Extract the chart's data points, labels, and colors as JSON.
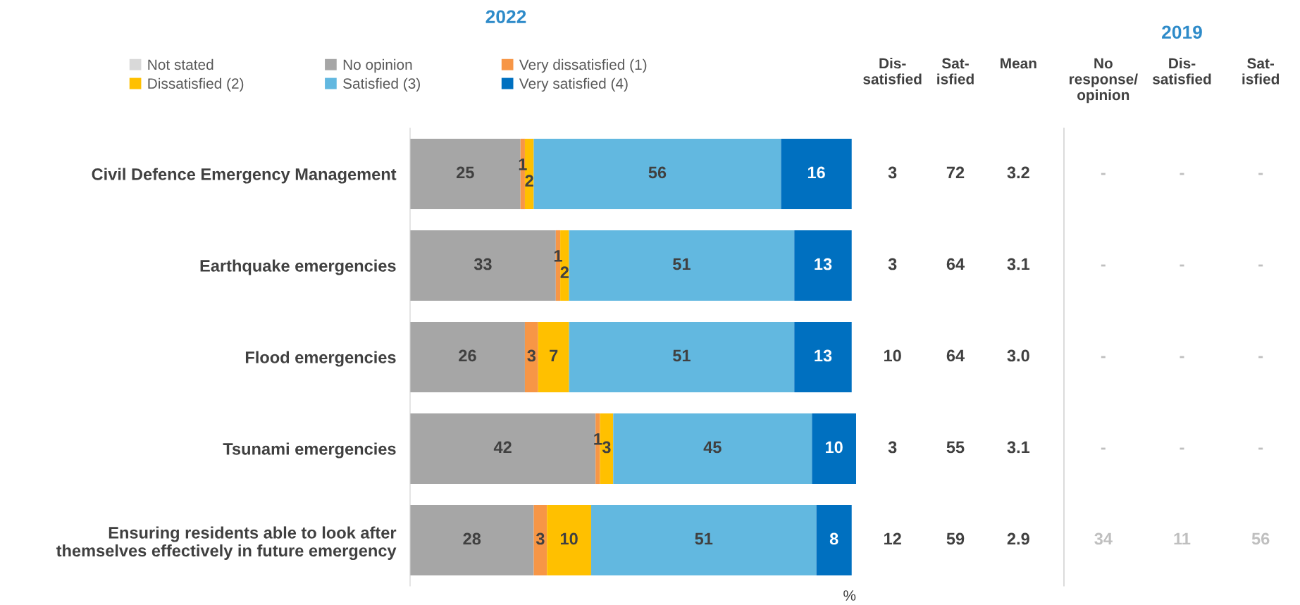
{
  "chart_data": [
    {
      "type": "bar",
      "orientation": "horizontal",
      "stacked": true,
      "title": "2022",
      "xlabel": "%",
      "xlim": [
        0,
        101
      ],
      "tick_labels": "y",
      "legend": "top",
      "grid": false,
      "categories": [
        "Civil Defence Emergency Management",
        "Earthquake emergencies",
        "Flood emergencies",
        "Tsunami emergencies",
        "Ensuring residents able to look after\nthemselves effectively in future emergency"
      ],
      "series": [
        {
          "name": "Not stated",
          "color": "#d9d9d9",
          "values": [
            0,
            0,
            0,
            0,
            0
          ],
          "value_labels": [
            null,
            null,
            null,
            null,
            null
          ]
        },
        {
          "name": "No opinion",
          "color": "#a6a6a6",
          "values": [
            25,
            33,
            26,
            42,
            28
          ],
          "value_labels": [
            "25",
            "33",
            "26",
            "42",
            "28"
          ]
        },
        {
          "name": "Very dissatisfied (1)",
          "color": "#f79646",
          "values": [
            1,
            1,
            3,
            1,
            3
          ],
          "value_labels": [
            "1",
            "1",
            "3",
            "1",
            "3"
          ]
        },
        {
          "name": "Dissatisfied (2)",
          "color": "#ffc000",
          "values": [
            2,
            2,
            7,
            3,
            10
          ],
          "value_labels": [
            "2",
            "2",
            "7",
            "3",
            "10"
          ]
        },
        {
          "name": "Satisfied (3)",
          "color": "#62b8e0",
          "values": [
            56,
            51,
            51,
            45,
            51
          ],
          "value_labels": [
            "56",
            "51",
            "51",
            "45",
            "51"
          ]
        },
        {
          "name": "Very satisfied (4)",
          "color": "#0070c0",
          "values": [
            16,
            13,
            13,
            10,
            8
          ],
          "value_labels": [
            "16",
            "13",
            "13",
            "10",
            "8"
          ]
        }
      ]
    },
    {
      "type": "other",
      "categories": [
        "Dis-\nsatisfied",
        "Sat-\nisfied",
        "Mean"
      ],
      "cell_labels": [
        [
          "3",
          "72",
          "3.2"
        ],
        [
          "3",
          "64",
          "3.1"
        ],
        [
          "10",
          "64",
          "3.0"
        ],
        [
          "3",
          "55",
          "3.1"
        ],
        [
          "12",
          "59",
          "2.9"
        ]
      ]
    },
    {
      "type": "other",
      "title": "2019",
      "categories": [
        "No\nresponse/\nopinion",
        "Dis-\nsatisfied",
        "Sat-\nisfied"
      ],
      "cell_labels": [
        [
          "-",
          "-",
          "-"
        ],
        [
          "-",
          "-",
          "-"
        ],
        [
          "-",
          "-",
          "-"
        ],
        [
          "-",
          "-",
          "-"
        ],
        [
          "34",
          "11",
          "56"
        ]
      ]
    }
  ]
}
